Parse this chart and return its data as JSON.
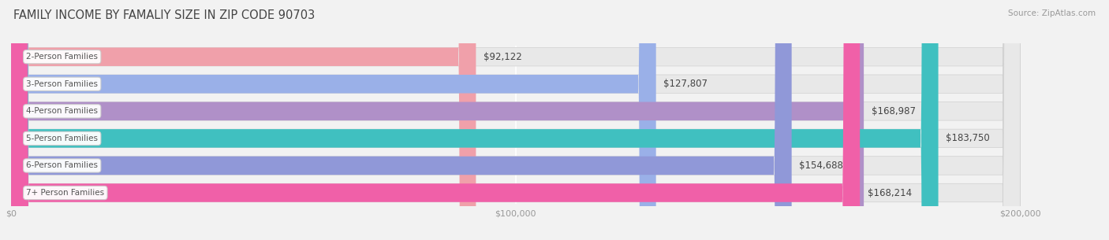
{
  "title": "FAMILY INCOME BY FAMALIY SIZE IN ZIP CODE 90703",
  "source": "Source: ZipAtlas.com",
  "categories": [
    "2-Person Families",
    "3-Person Families",
    "4-Person Families",
    "5-Person Families",
    "6-Person Families",
    "7+ Person Families"
  ],
  "values": [
    92122,
    127807,
    168987,
    183750,
    154688,
    168214
  ],
  "labels": [
    "$92,122",
    "$127,807",
    "$168,987",
    "$183,750",
    "$154,688",
    "$168,214"
  ],
  "bar_colors": [
    "#f0a0aa",
    "#9ab0e8",
    "#b090c8",
    "#40c0c0",
    "#9098d8",
    "#f060a8"
  ],
  "background_color": "#f2f2f2",
  "bar_bg_color": "#e0e0e0",
  "xlim": [
    0,
    200000
  ],
  "xticks": [
    0,
    100000,
    200000
  ],
  "xtick_labels": [
    "$0",
    "$100,000",
    "$200,000"
  ],
  "title_fontsize": 10.5,
  "label_fontsize": 8.5,
  "cat_fontsize": 7.5,
  "bar_height": 0.68,
  "bar_gap": 0.32
}
